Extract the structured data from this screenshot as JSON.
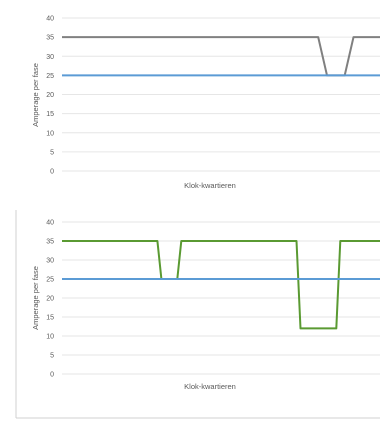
{
  "chart_data": [
    {
      "type": "line",
      "xlabel": "Klok-kwartieren",
      "ylabel": "Amperage per fase",
      "ylim": [
        0,
        40
      ],
      "yticks": [
        0,
        5,
        10,
        15,
        20,
        25,
        30,
        35,
        40
      ],
      "grid": true,
      "legend": "none",
      "x": [
        0,
        58,
        60,
        64,
        66,
        72
      ],
      "series": [
        {
          "color": "#808080",
          "values": [
            35,
            35,
            25,
            25,
            35,
            35
          ]
        },
        {
          "color": "#5b9bd5",
          "values": [
            25,
            25,
            25,
            25,
            25,
            25
          ]
        }
      ]
    },
    {
      "type": "line",
      "xlabel": "Klok-kwartieren",
      "ylabel": "Amperage per fase",
      "ylim": [
        0,
        40
      ],
      "yticks": [
        0,
        5,
        10,
        15,
        20,
        25,
        30,
        35,
        40
      ],
      "grid": true,
      "legend": "none",
      "x": [
        0,
        12,
        12.5,
        14.5,
        15,
        29.5,
        30,
        34.5,
        35,
        40
      ],
      "series": [
        {
          "color": "#5a9a32",
          "values": [
            35,
            35,
            25,
            25,
            35,
            35,
            12,
            12,
            35,
            35
          ]
        },
        {
          "color": "#5b9bd5",
          "values": [
            25,
            25,
            25,
            25,
            25,
            25,
            25,
            25,
            25,
            25
          ]
        }
      ]
    }
  ]
}
